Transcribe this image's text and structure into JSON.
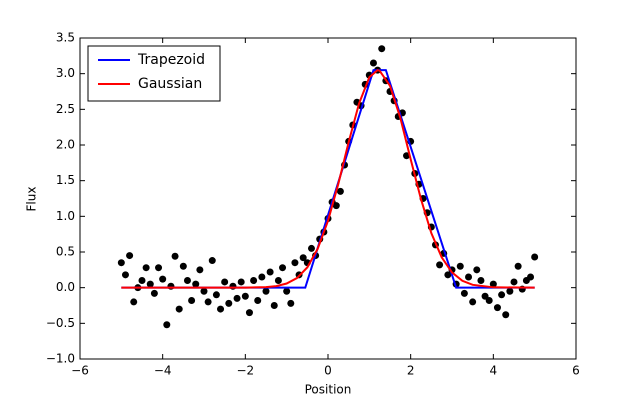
{
  "chart_data": {
    "type": "scatter",
    "xlabel": "Position",
    "ylabel": "Flux",
    "xlim": [
      -6,
      6
    ],
    "ylim": [
      -1,
      3.5
    ],
    "xticks": [
      {
        "value": -6,
        "label": "−6"
      },
      {
        "value": -4,
        "label": "−4"
      },
      {
        "value": -2,
        "label": "−2"
      },
      0,
      2,
      4,
      6
    ],
    "yticks": [
      {
        "value": -1,
        "label": "−1.0"
      },
      {
        "value": -0.5,
        "label": "−0.5"
      },
      {
        "value": 0,
        "label": "0.0"
      },
      0.5,
      {
        "value": 1,
        "label": "1.0"
      },
      1.5,
      {
        "value": 2,
        "label": "2.0"
      },
      2.5,
      {
        "value": 3,
        "label": "3.0"
      },
      3.5
    ],
    "color": "#000000",
    "x": [
      -5.0,
      -4.9,
      -4.8,
      -4.7,
      -4.6,
      -4.5,
      -4.4,
      -4.3,
      -4.2,
      -4.1,
      -4.0,
      -3.9,
      -3.8,
      -3.7,
      -3.6,
      -3.5,
      -3.4,
      -3.3,
      -3.2,
      -3.1,
      -3.0,
      -2.9,
      -2.8,
      -2.7,
      -2.6,
      -2.5,
      -2.4,
      -2.3,
      -2.2,
      -2.1,
      -2.0,
      -1.9,
      -1.8,
      -1.7,
      -1.6,
      -1.5,
      -1.4,
      -1.3,
      -1.2,
      -1.1,
      -1.0,
      -0.9,
      -0.8,
      -0.7,
      -0.6,
      -0.5,
      -0.4,
      -0.3,
      -0.2,
      -0.1,
      0.0,
      0.1,
      0.2,
      0.3,
      0.4,
      0.5,
      0.6,
      0.7,
      0.8,
      0.9,
      1.0,
      1.1,
      1.2,
      1.3,
      1.4,
      1.5,
      1.6,
      1.7,
      1.8,
      1.9,
      2.0,
      2.1,
      2.2,
      2.3,
      2.4,
      2.5,
      2.6,
      2.7,
      2.8,
      2.9,
      3.0,
      3.1,
      3.2,
      3.3,
      3.4,
      3.5,
      3.6,
      3.7,
      3.8,
      3.9,
      4.0,
      4.1,
      4.2,
      4.3,
      4.4,
      4.5,
      4.6,
      4.7,
      4.8,
      4.9,
      5.0
    ],
    "values": [
      0.35,
      0.18,
      0.45,
      -0.2,
      0.0,
      0.1,
      0.28,
      0.05,
      -0.08,
      0.28,
      0.12,
      -0.52,
      0.02,
      0.44,
      -0.3,
      0.3,
      0.1,
      -0.18,
      0.05,
      0.25,
      -0.05,
      -0.2,
      0.38,
      -0.1,
      -0.3,
      0.08,
      -0.22,
      0.02,
      -0.15,
      0.08,
      -0.12,
      -0.35,
      0.1,
      -0.18,
      0.15,
      -0.05,
      0.22,
      -0.25,
      0.1,
      0.28,
      -0.05,
      -0.22,
      0.35,
      0.18,
      0.42,
      0.35,
      0.55,
      0.45,
      0.68,
      0.78,
      0.97,
      1.2,
      1.15,
      1.35,
      1.72,
      2.05,
      2.28,
      2.6,
      2.55,
      2.85,
      2.98,
      3.15,
      3.05,
      3.35,
      2.9,
      2.75,
      2.62,
      2.4,
      2.45,
      1.85,
      2.05,
      1.6,
      1.45,
      1.25,
      1.05,
      0.85,
      0.6,
      0.32,
      0.48,
      0.18,
      0.25,
      0.05,
      0.3,
      -0.08,
      0.15,
      -0.2,
      0.25,
      0.1,
      -0.12,
      -0.18,
      0.05,
      -0.28,
      -0.1,
      -0.38,
      -0.05,
      0.08,
      0.3,
      -0.02,
      0.1,
      0.15,
      0.43
    ],
    "series": [
      {
        "name": "Trapezoid",
        "color": "#0000ff",
        "x": [
          -5,
          -0.55,
          1.1,
          1.4,
          3.1,
          5
        ],
        "values": [
          0,
          0,
          3.05,
          3.05,
          0,
          0
        ]
      },
      {
        "name": "Gaussian",
        "color": "#ff0000",
        "x": [
          -5,
          -3,
          -2,
          -1.5,
          -1.25,
          -1,
          -0.75,
          -0.5,
          -0.25,
          0,
          0.25,
          0.5,
          0.75,
          1,
          1.2,
          1.25,
          1.5,
          1.75,
          2,
          2.25,
          2.5,
          2.75,
          3,
          3.25,
          3.5,
          4,
          5
        ],
        "values": [
          0,
          0,
          0,
          0.008,
          0.022,
          0.058,
          0.135,
          0.285,
          0.544,
          0.937,
          1.455,
          2.04,
          2.58,
          2.95,
          3.05,
          3.04,
          2.83,
          2.38,
          1.8,
          1.24,
          0.764,
          0.426,
          0.214,
          0.097,
          0.04,
          0.005,
          0
        ]
      }
    ],
    "legend": "upper left"
  }
}
